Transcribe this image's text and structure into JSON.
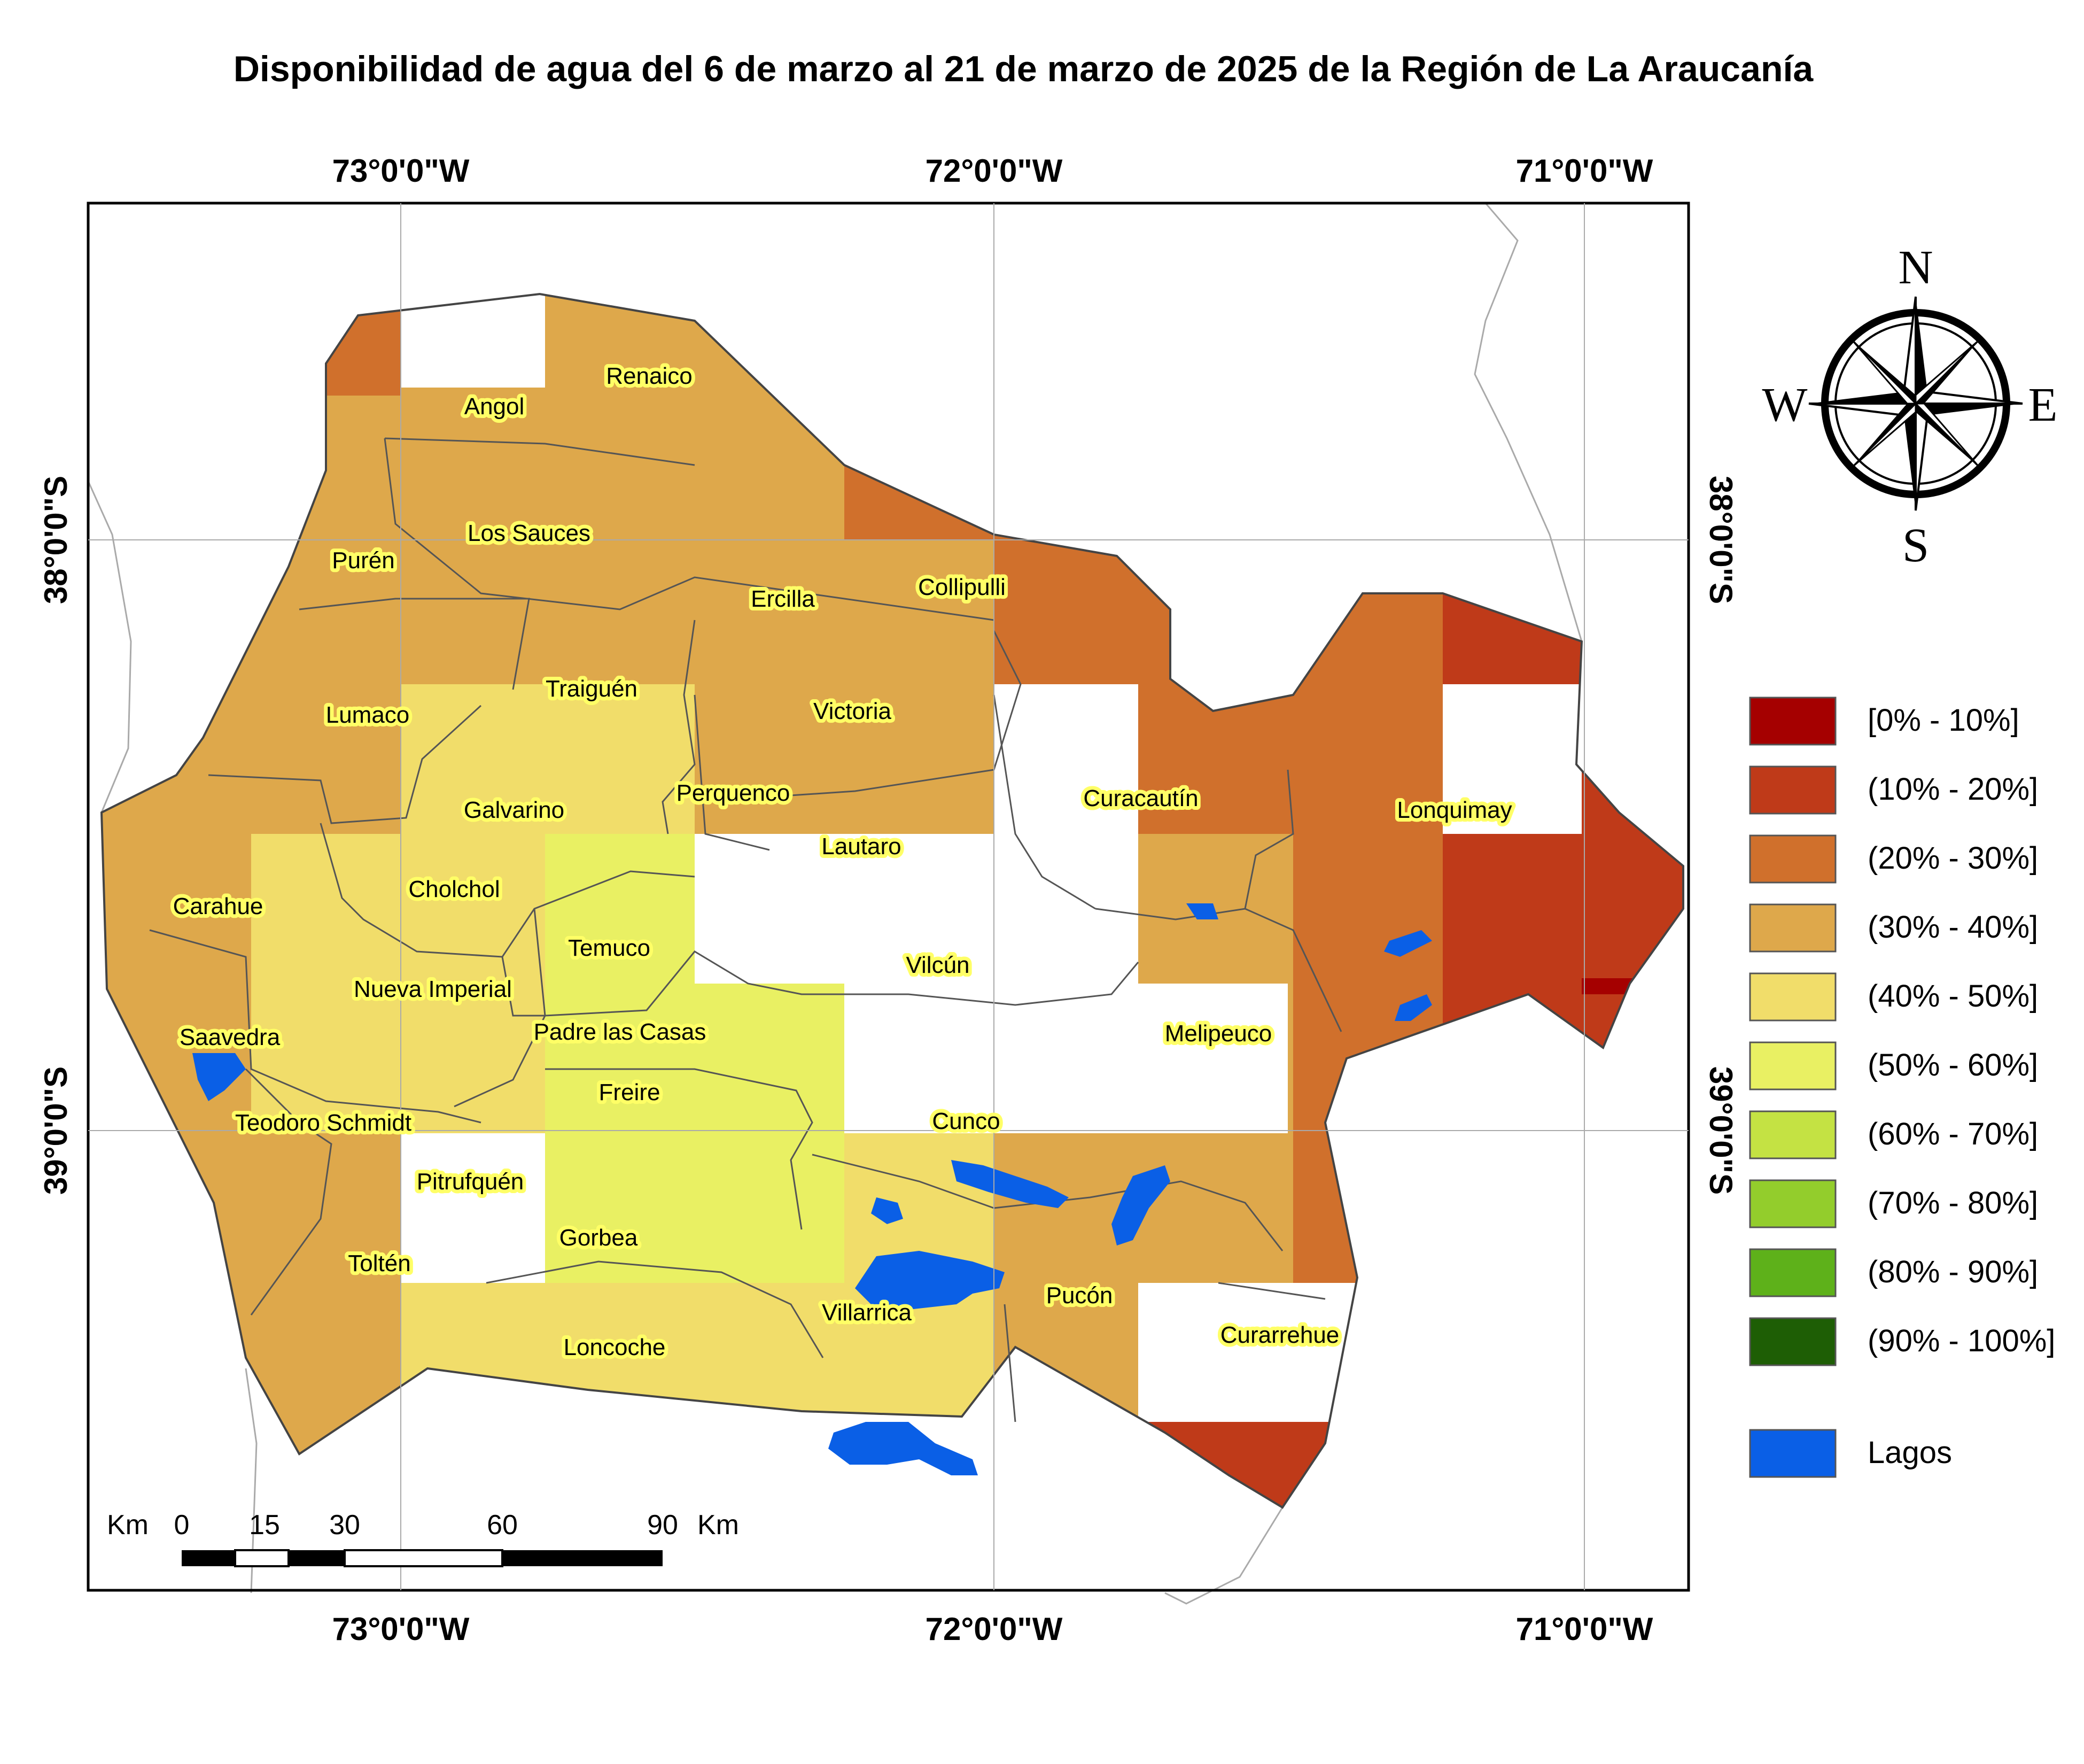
{
  "title": "Disponibilidad de agua del 6 de marzo al 21 de marzo de 2025 de la Región de La Araucanía",
  "axes": {
    "lon_labels": [
      "73°0'0\"W",
      "72°0'0\"W",
      "71°0'0\"W"
    ],
    "lat_labels": [
      "38°0'0\"S",
      "39°0'0\"S"
    ]
  },
  "colors": {
    "c0_10": "#a50000",
    "c10_20": "#bf3a19",
    "c20_30": "#d0702c",
    "c30_40": "#dea84b",
    "c40_50": "#f1dd6a",
    "c50_60": "#e9f063",
    "c60_70": "#c4e243",
    "c70_80": "#93cd2c",
    "c80_90": "#5eb11a",
    "c90_100": "#1e5e05",
    "lakes": "#0a5fe6",
    "nodata": "#ffffff"
  },
  "legend": {
    "items": [
      {
        "label": "[0% - 10%]",
        "color": "#a50000"
      },
      {
        "label": "(10% - 20%]",
        "color": "#bf3a19"
      },
      {
        "label": "(20% - 30%]",
        "color": "#d0702c"
      },
      {
        "label": "(30% - 40%]",
        "color": "#dea84b"
      },
      {
        "label": "(40% - 50%]",
        "color": "#f1dd6a"
      },
      {
        "label": "(50% - 60%]",
        "color": "#e9f063"
      },
      {
        "label": "(60% - 70%]",
        "color": "#c4e243"
      },
      {
        "label": "(70% - 80%]",
        "color": "#93cd2c"
      },
      {
        "label": "(80% - 90%]",
        "color": "#5eb11a"
      },
      {
        "label": "(90% - 100%]",
        "color": "#1e5e05"
      }
    ],
    "lakes_label": "Lagos",
    "lakes_color": "#0a5fe6"
  },
  "compass": {
    "n": "N",
    "s": "S",
    "e": "E",
    "w": "W"
  },
  "scale_bar": {
    "km_left": "Km",
    "ticks": [
      "0",
      "15",
      "30",
      "60",
      "90"
    ],
    "km_right": "Km"
  },
  "municipalities": [
    "Angol",
    "Renaico",
    "Los Sauces",
    "Purén",
    "Collipulli",
    "Ercilla",
    "Traiguén",
    "Lumaco",
    "Victoria",
    "Galvarino",
    "Perquenco",
    "Curacautín",
    "Lonquimay",
    "Lautaro",
    "Carahue",
    "Cholchol",
    "Temuco",
    "Vilcún",
    "Nueva Imperial",
    "Saavedra",
    "Padre las Casas",
    "Melipeuco",
    "Freire",
    "Teodoro Schmidt",
    "Cunco",
    "Pitrufquén",
    "Gorbea",
    "Toltén",
    "Pucón",
    "Villarrica",
    "Curarrehue",
    "Loncoche"
  ]
}
